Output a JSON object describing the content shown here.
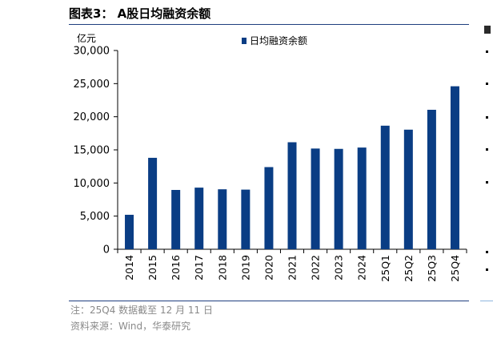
{
  "figure": {
    "title": "图表3：  A股日均融资余额",
    "note": "注：25Q4 数据截至 12 月 11 日",
    "source": "资料来源：Wind，华泰研究"
  },
  "colors": {
    "bar": "#0a3d84",
    "axis": "#000000",
    "rule": "#1f3f7f"
  },
  "chart_data": {
    "type": "bar",
    "title": "A股日均融资余额",
    "ylabel": "亿元",
    "xlabel": "",
    "ylim": [
      0,
      30000
    ],
    "yticks": [
      0,
      5000,
      10000,
      15000,
      20000,
      25000,
      30000
    ],
    "ytick_labels": [
      "0",
      "5,000",
      "10,000",
      "15,000",
      "20,000",
      "25,000",
      "30,000"
    ],
    "grid": false,
    "legend": {
      "position": "top-center",
      "entries": [
        "日均融资余额"
      ]
    },
    "categories": [
      "2014",
      "2015",
      "2016",
      "2017",
      "2018",
      "2019",
      "2020",
      "2021",
      "2022",
      "2023",
      "2024",
      "25Q1",
      "25Q2",
      "25Q3",
      "25Q4"
    ],
    "series": [
      {
        "name": "日均融资余额",
        "values": [
          5200,
          13800,
          8950,
          9300,
          9050,
          9000,
          12400,
          16150,
          15200,
          15150,
          15350,
          18650,
          18050,
          21050,
          24600
        ]
      }
    ]
  }
}
